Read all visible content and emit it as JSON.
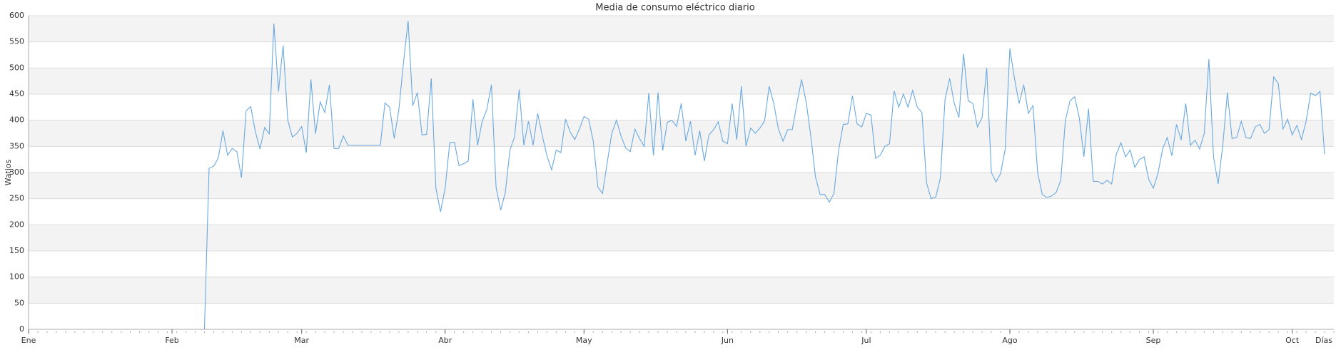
{
  "chart_data": {
    "type": "line",
    "title": "Media de consumo eléctrico diario",
    "x_label": "Días",
    "y_label": "Watios",
    "x": [
      38,
      39,
      40,
      41,
      42,
      43,
      44,
      45,
      46,
      47,
      48,
      49,
      50,
      51,
      52,
      53,
      54,
      55,
      56,
      57,
      58,
      59,
      60,
      61,
      62,
      63,
      64,
      65,
      66,
      67,
      68,
      69,
      70,
      71,
      72,
      73,
      74,
      75,
      76,
      77,
      78,
      79,
      80,
      81,
      82,
      83,
      84,
      85,
      86,
      87,
      88,
      89,
      90,
      91,
      92,
      93,
      94,
      95,
      96,
      97,
      98,
      99,
      100,
      101,
      102,
      103,
      104,
      105,
      106,
      107,
      108,
      109,
      110,
      111,
      112,
      113,
      114,
      115,
      116,
      117,
      118,
      119,
      120,
      121,
      122,
      123,
      124,
      125,
      126,
      127,
      128,
      129,
      130,
      131,
      132,
      133,
      134,
      135,
      136,
      137,
      138,
      139,
      140,
      141,
      142,
      143,
      144,
      145,
      146,
      147,
      148,
      149,
      150,
      151,
      152,
      153,
      154,
      155,
      156,
      157,
      158,
      159,
      160,
      161,
      162,
      163,
      164,
      165,
      166,
      167,
      168,
      169,
      170,
      171,
      172,
      173,
      174,
      175,
      176,
      177,
      178,
      179,
      180,
      181,
      182,
      183,
      184,
      185,
      186,
      187,
      188,
      189,
      190,
      191,
      192,
      193,
      194,
      195,
      196,
      197,
      198,
      199,
      200,
      201,
      202,
      203,
      204,
      205,
      206,
      207,
      208,
      209,
      210,
      211,
      212,
      213,
      214,
      215,
      216,
      217,
      218,
      219,
      220,
      221,
      222,
      223,
      224,
      225,
      226,
      227,
      228,
      229,
      230,
      231,
      232,
      233,
      234,
      235,
      236,
      237,
      238,
      239,
      240,
      241,
      242,
      243,
      244,
      245,
      246,
      247,
      248,
      249,
      250,
      251,
      252,
      253,
      254,
      255,
      256,
      257,
      258,
      259,
      260,
      261,
      262,
      263,
      264,
      265,
      266,
      267,
      268,
      269,
      270,
      271,
      272,
      273,
      274,
      275,
      276,
      277,
      278,
      279,
      280
    ],
    "series": [
      {
        "name": "Watios",
        "color": "#6aa9e0",
        "values": [
          0,
          308,
          312,
          328,
          380,
          333,
          346,
          340,
          290,
          418,
          426,
          378,
          345,
          386,
          374,
          585,
          455,
          543,
          400,
          368,
          375,
          388,
          338,
          478,
          374,
          435,
          415,
          468,
          346,
          346,
          370,
          352,
          352,
          352,
          352,
          352,
          352,
          352,
          352,
          433,
          425,
          365,
          420,
          510,
          590,
          428,
          453,
          372,
          373,
          480,
          270,
          225,
          270,
          357,
          358,
          313,
          317,
          322,
          440,
          352,
          398,
          420,
          468,
          272,
          228,
          262,
          343,
          368,
          459,
          352,
          398,
          352,
          413,
          370,
          332,
          305,
          343,
          338,
          402,
          378,
          363,
          383,
          407,
          402,
          360,
          272,
          260,
          318,
          375,
          400,
          370,
          347,
          340,
          383,
          365,
          350,
          452,
          333,
          453,
          342,
          396,
          400,
          388,
          432,
          360,
          398,
          333,
          380,
          322,
          372,
          382,
          397,
          360,
          355,
          432,
          363,
          465,
          350,
          385,
          375,
          385,
          398,
          465,
          432,
          383,
          360,
          382,
          382,
          432,
          478,
          435,
          370,
          292,
          258,
          258,
          243,
          260,
          342,
          392,
          393,
          447,
          393,
          387,
          413,
          410,
          327,
          333,
          350,
          355,
          456,
          425,
          450,
          425,
          457,
          425,
          415,
          280,
          250,
          253,
          290,
          440,
          480,
          432,
          405,
          527,
          437,
          432,
          387,
          405,
          500,
          300,
          282,
          298,
          345,
          537,
          480,
          432,
          468,
          413,
          428,
          300,
          258,
          252,
          255,
          262,
          285,
          400,
          437,
          445,
          405,
          330,
          422,
          283,
          283,
          278,
          285,
          278,
          335,
          357,
          330,
          343,
          310,
          325,
          330,
          287,
          270,
          298,
          345,
          367,
          332,
          392,
          362,
          432,
          352,
          362,
          345,
          375,
          517,
          330,
          278,
          352,
          453,
          365,
          367,
          398,
          367,
          365,
          387,
          392,
          375,
          382,
          483,
          470,
          383,
          402,
          372,
          390,
          363,
          398,
          452,
          447,
          455,
          335
        ]
      }
    ],
    "xlim": [
      0,
      282
    ],
    "xticks": [
      {
        "value": 0,
        "label": "Ene"
      },
      {
        "value": 31,
        "label": "Feb"
      },
      {
        "value": 59,
        "label": "Mar"
      },
      {
        "value": 90,
        "label": "Abr"
      },
      {
        "value": 120,
        "label": "May"
      },
      {
        "value": 151,
        "label": "Jun"
      },
      {
        "value": 181,
        "label": "Jul"
      },
      {
        "value": 212,
        "label": "Ago"
      },
      {
        "value": 243,
        "label": "Sep"
      },
      {
        "value": 273,
        "label": "Oct"
      }
    ],
    "ylim": [
      0,
      600
    ],
    "yticks": [
      0,
      50,
      100,
      150,
      200,
      250,
      300,
      350,
      400,
      450,
      500,
      550,
      600
    ],
    "grid": true
  }
}
